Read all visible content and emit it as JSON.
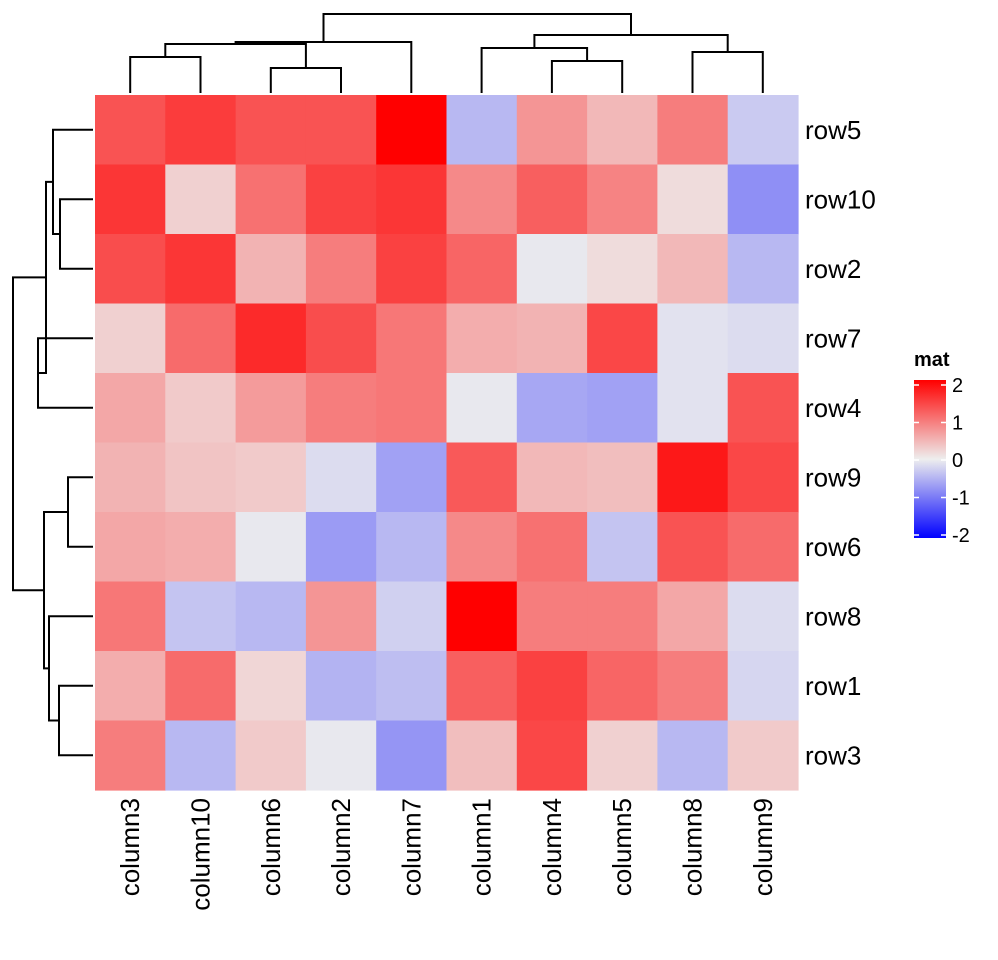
{
  "chart_data": {
    "type": "heatmap",
    "columns": [
      "column3",
      "column10",
      "column6",
      "column2",
      "column7",
      "column1",
      "column4",
      "column5",
      "column8",
      "column9"
    ],
    "rows": [
      "row5",
      "row10",
      "row2",
      "row7",
      "row4",
      "row9",
      "row6",
      "row8",
      "row1",
      "row3"
    ],
    "values": [
      [
        1.3,
        1.5,
        1.3,
        1.3,
        2.0,
        -0.45,
        0.75,
        0.45,
        0.95,
        -0.3
      ],
      [
        1.55,
        0.25,
        1.05,
        1.45,
        1.55,
        0.85,
        1.2,
        0.9,
        0.15,
        -0.8
      ],
      [
        1.35,
        1.55,
        0.5,
        0.95,
        1.45,
        1.15,
        -0.05,
        0.15,
        0.45,
        -0.45
      ],
      [
        0.25,
        1.1,
        1.65,
        1.35,
        1.0,
        0.55,
        0.5,
        1.4,
        -0.1,
        -0.15
      ],
      [
        0.6,
        0.3,
        0.7,
        0.95,
        1.0,
        -0.05,
        -0.6,
        -0.65,
        -0.1,
        1.3
      ],
      [
        0.5,
        0.35,
        0.3,
        -0.15,
        -0.65,
        1.25,
        0.45,
        0.4,
        1.8,
        1.4
      ],
      [
        0.6,
        0.55,
        -0.05,
        -0.7,
        -0.45,
        0.85,
        1.05,
        -0.35,
        1.3,
        1.1
      ],
      [
        1.0,
        -0.35,
        -0.45,
        0.75,
        -0.25,
        2.0,
        0.95,
        0.95,
        0.6,
        -0.15
      ],
      [
        0.55,
        1.1,
        0.2,
        -0.5,
        -0.4,
        1.2,
        1.45,
        1.15,
        0.95,
        -0.2
      ],
      [
        0.95,
        -0.45,
        0.3,
        -0.05,
        -0.75,
        0.4,
        1.4,
        0.25,
        -0.45,
        0.3
      ]
    ],
    "legend": {
      "title": "mat",
      "ticks": [
        2,
        1,
        0,
        -1,
        -2
      ],
      "tick_labels": [
        "2",
        "1",
        "0",
        "-1",
        "-2"
      ],
      "colors": {
        "low": "#0000ff",
        "mid": "#eeeeee",
        "high": "#ff0000"
      },
      "placement": "right"
    },
    "row_dendrogram": true,
    "column_dendrogram": true
  }
}
